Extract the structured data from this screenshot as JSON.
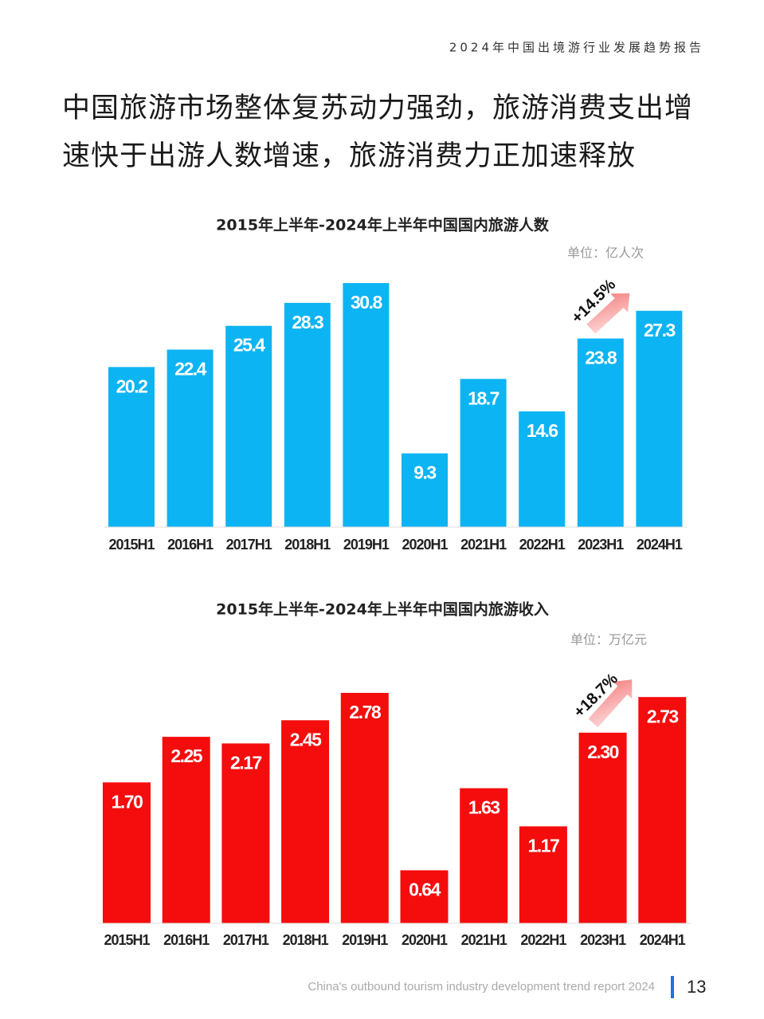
{
  "header": "2024年中国出境游行业发展趋势报告",
  "heading": [
    "中国旅游市场整体复苏动力强劲，旅游消费支出增",
    "速快于出游人数增速，旅游消费力正加速释放"
  ],
  "chart_data": [
    {
      "type": "bar",
      "title": "2015年上半年-2024年上半年中国国内旅游人数",
      "unit": "单位：亿人次",
      "categories": [
        "2015H1",
        "2016H1",
        "2017H1",
        "2018H1",
        "2019H1",
        "2020H1",
        "2021H1",
        "2022H1",
        "2023H1",
        "2024H1"
      ],
      "values": [
        20.2,
        22.4,
        25.4,
        28.3,
        30.8,
        9.3,
        18.7,
        14.6,
        23.8,
        27.3
      ],
      "color": "#0db4f3",
      "annotation": "+14.5%"
    },
    {
      "type": "bar",
      "title": "2015年上半年-2024年上半年中国国内旅游收入",
      "unit": "单位：万亿元",
      "categories": [
        "2015H1",
        "2016H1",
        "2017H1",
        "2018H1",
        "2019H1",
        "2020H1",
        "2021H1",
        "2022H1",
        "2023H1",
        "2024H1"
      ],
      "values": [
        1.7,
        2.25,
        2.17,
        2.45,
        2.78,
        0.64,
        1.63,
        1.17,
        2.3,
        2.73
      ],
      "value_labels": [
        "1.70",
        "2.25",
        "2.17",
        "2.45",
        "2.78",
        "0.64",
        "1.63",
        "1.17",
        "2.30",
        "2.73"
      ],
      "color": "#f50c0c",
      "annotation": "+18.7%"
    }
  ],
  "footer": "China's outbound tourism industry development trend report 2024",
  "page_number": "13"
}
